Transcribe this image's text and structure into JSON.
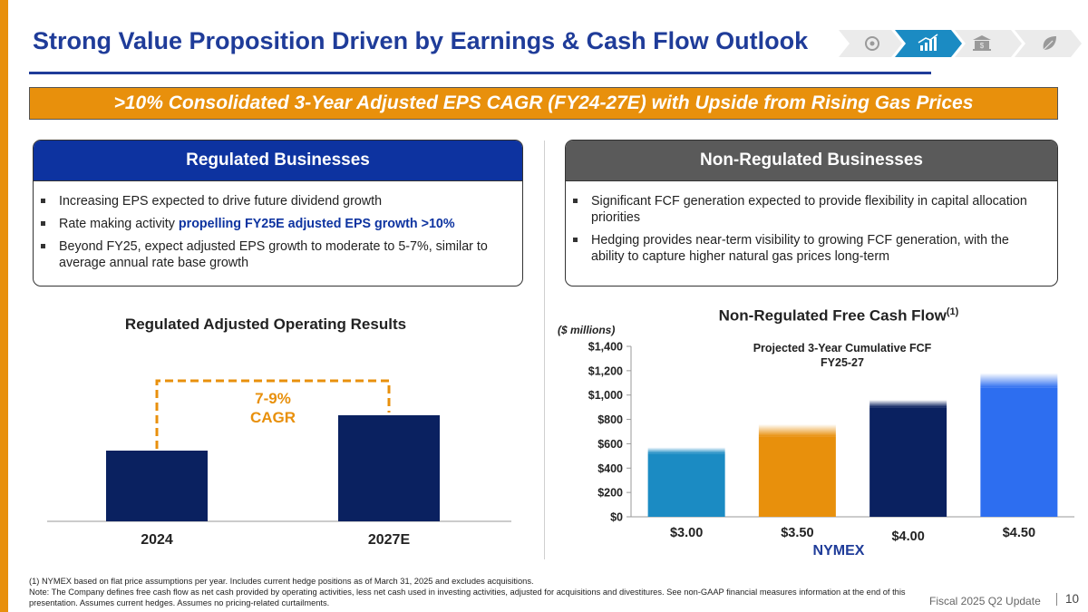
{
  "title": "Strong Value Proposition Driven by Earnings & Cash Flow Outlook",
  "nav_icons": [
    "safety-icon",
    "growth-chart-icon",
    "bank-dollar-icon",
    "leaf-icon"
  ],
  "banner": ">10% Consolidated 3-Year Adjusted EPS CAGR (FY24-27E) with Upside from Rising Gas Prices",
  "regulated": {
    "heading": "Regulated Businesses",
    "bullet1": "Increasing EPS expected to drive future dividend growth",
    "bullet2_prefix": "Rate making activity ",
    "bullet2_highlight": "propelling FY25E adjusted EPS growth >10%",
    "bullet3": "Beyond FY25, expect adjusted EPS growth to moderate to 5-7%, similar to average annual rate base growth"
  },
  "non_regulated": {
    "heading": "Non-Regulated Businesses",
    "bullet1": "Significant FCF generation expected to provide flexibility in capital allocation priorities",
    "bullet2": "Hedging provides near-term visibility to growing FCF generation, with the ability to capture higher natural gas prices long-term"
  },
  "chart_data": [
    {
      "type": "bar",
      "title": "Regulated Adjusted Operating Results",
      "categories": [
        "2024",
        "2027E"
      ],
      "values": [
        1.0,
        1.5
      ],
      "annotation": [
        "7-9%",
        "CAGR"
      ],
      "y_axis_shown": false,
      "colors": [
        "#0a2160",
        "#0a2160"
      ],
      "annotation_color": "#e8900c"
    },
    {
      "type": "bar",
      "title": "Non-Regulated Free Cash Flow",
      "title_superscript": "(1)",
      "unit_label": "($ millions)",
      "subtitle": "Projected 3-Year Cumulative FCF FY25-27",
      "xlabel": "NYMEX",
      "categories": [
        "$3.00",
        "$3.50",
        "$4.00",
        "$4.50"
      ],
      "values": [
        520,
        660,
        900,
        1060
      ],
      "fade_upper": [
        570,
        760,
        960,
        1180
      ],
      "colors": [
        "#1b8bc3",
        "#e8900c",
        "#0a2160",
        "#2d6ef0"
      ],
      "ylim": [
        0,
        1400
      ],
      "yticks": [
        "$0",
        "$200",
        "$400",
        "$600",
        "$800",
        "$1,000",
        "$1,200",
        "$1,400"
      ],
      "ytick_values": [
        0,
        200,
        400,
        600,
        800,
        1000,
        1200,
        1400
      ]
    }
  ],
  "footnote_line1": "(1) NYMEX based on flat price assumptions per year. Includes current hedge positions as of March 31, 2025 and excludes acquisitions.",
  "footnote_line2": "Note: The Company defines free cash flow as net cash provided by operating activities, less net cash used in investing activities, adjusted for acquisitions and divestitures. See non-GAAP financial measures information at the end of this presentation. Assumes current hedges. Assumes no pricing-related curtailments.",
  "footer": "Fiscal 2025 Q2 Update",
  "page_number": "10"
}
